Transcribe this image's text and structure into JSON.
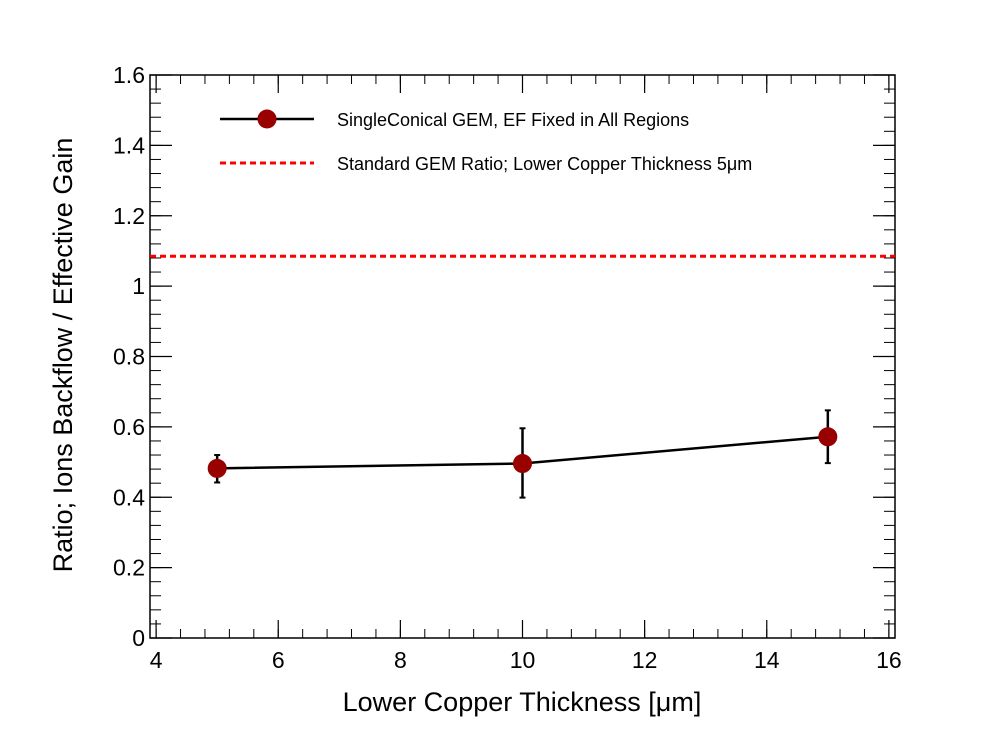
{
  "chart_data": {
    "type": "line",
    "title": "",
    "xlabel": "Lower Copper Thickness [μm]",
    "ylabel": "Ratio; Ions Backflow / Effective Gain",
    "xlim": [
      3.9,
      16.1
    ],
    "ylim": [
      0,
      1.6
    ],
    "x_ticks": [
      4,
      6,
      8,
      10,
      12,
      14,
      16
    ],
    "x_tick_labels": [
      "4",
      "6",
      "8",
      "10",
      "12",
      "14",
      "16"
    ],
    "y_ticks": [
      0,
      0.2,
      0.4,
      0.6,
      0.8,
      1,
      1.2,
      1.4,
      1.6
    ],
    "y_tick_labels": [
      "0",
      "0.2",
      "0.4",
      "0.6",
      "0.8",
      "1",
      "1.2",
      "1.4",
      "1.6"
    ],
    "grid": false,
    "legend_position": "top-left",
    "series": [
      {
        "name": "SingleConical GEM, EF Fixed in All Regions",
        "color": "#990000",
        "line_color": "#000000",
        "x": [
          5,
          10,
          15
        ],
        "y": [
          0.482,
          0.496,
          0.572
        ],
        "yerr_low": [
          0.04,
          0.097,
          0.075
        ],
        "yerr_high": [
          0.038,
          0.1,
          0.075
        ]
      }
    ],
    "reference_lines": [
      {
        "name": "Standard GEM Ratio; Lower Copper Thickness 5μm",
        "y": 1.085,
        "color": "#ff0000",
        "style": "dashed"
      }
    ]
  }
}
